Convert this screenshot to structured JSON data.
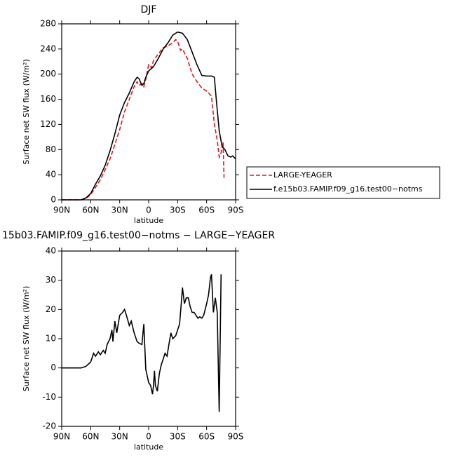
{
  "chart_data": [
    {
      "type": "line",
      "title": "DJF",
      "ylabel": "Surface net SW flux (W/m²)",
      "xlabel": "latitude",
      "xlim": [
        90,
        -90
      ],
      "xticks": [
        {
          "value": 90,
          "label": "90N"
        },
        {
          "value": 60,
          "label": "60N"
        },
        {
          "value": 30,
          "label": "30N"
        },
        0,
        {
          "value": -30,
          "label": "30S"
        },
        {
          "value": -60,
          "label": "60S"
        },
        {
          "value": -90,
          "label": "90S"
        }
      ],
      "ylim": [
        0,
        280
      ],
      "yticks": [
        0,
        40,
        80,
        120,
        160,
        200,
        240,
        280
      ],
      "series": [
        {
          "name": "LARGE-YEAGER",
          "color": "#e8141a",
          "style": "dashed",
          "x": [
            90,
            80,
            70,
            65,
            60,
            55,
            50,
            45,
            40,
            35,
            30,
            25,
            20,
            15,
            12,
            10,
            7,
            5,
            3,
            0,
            -3,
            -5,
            -10,
            -15,
            -20,
            -25,
            -28,
            -30,
            -33,
            -35,
            -40,
            -45,
            -50,
            -55,
            -60,
            -65,
            -68,
            -71,
            -73,
            -75,
            -77,
            -78
          ],
          "values": [
            0,
            0,
            0,
            2,
            8,
            20,
            32,
            48,
            65,
            88,
            112,
            140,
            160,
            180,
            188,
            182,
            185,
            180,
            192,
            215,
            210,
            222,
            232,
            242,
            245,
            250,
            255,
            252,
            238,
            240,
            225,
            200,
            188,
            178,
            173,
            165,
            120,
            95,
            68,
            75,
            92,
            35
          ]
        },
        {
          "name": "f.e15b03.FAMIP.f09_g16.test00−notms",
          "color": "#000000",
          "style": "solid",
          "x": [
            90,
            80,
            70,
            65,
            60,
            55,
            50,
            45,
            40,
            35,
            30,
            25,
            20,
            15,
            12,
            10,
            7,
            5,
            3,
            0,
            -5,
            -10,
            -15,
            -20,
            -25,
            -30,
            -35,
            -40,
            -45,
            -50,
            -55,
            -60,
            -65,
            -68,
            -70,
            -73,
            -76,
            -79,
            -82,
            -85,
            -87,
            -90
          ],
          "values": [
            0,
            0,
            0,
            3,
            10,
            25,
            38,
            55,
            78,
            105,
            135,
            155,
            170,
            188,
            195,
            193,
            182,
            185,
            195,
            205,
            212,
            225,
            240,
            250,
            262,
            267,
            265,
            255,
            235,
            215,
            198,
            197,
            197,
            195,
            160,
            110,
            85,
            80,
            70,
            68,
            70,
            65
          ]
        }
      ]
    },
    {
      "type": "line",
      "title": "15b03.FAMIP.f09_g16.test00−notms − LARGE−YEAGER",
      "ylabel": "Surface net SW flux (W/m²)",
      "xlabel": "latitude",
      "xlim": [
        90,
        -90
      ],
      "xticks": [
        {
          "value": 90,
          "label": "90N"
        },
        {
          "value": 60,
          "label": "60N"
        },
        {
          "value": 30,
          "label": "30N"
        },
        0,
        {
          "value": -30,
          "label": "30S"
        },
        {
          "value": -60,
          "label": "60S"
        },
        {
          "value": -90,
          "label": "90S"
        }
      ],
      "ylim": [
        -20,
        40
      ],
      "yticks": [
        -20,
        -10,
        0,
        10,
        20,
        30,
        40
      ],
      "series": [
        {
          "color": "#000000",
          "style": "solid",
          "x": [
            90,
            80,
            70,
            65,
            60,
            57,
            55,
            52,
            50,
            47,
            45,
            43,
            40,
            38,
            37,
            35,
            33,
            30,
            27,
            25,
            23,
            20,
            18,
            15,
            12,
            10,
            7,
            5,
            3,
            0,
            -2,
            -4,
            -5,
            -6,
            -7,
            -9,
            -11,
            -13,
            -15,
            -17,
            -19,
            -21,
            -23,
            -25,
            -28,
            -30,
            -32,
            -34,
            -35,
            -37,
            -39,
            -41,
            -43,
            -45,
            -47,
            -49,
            -51,
            -53,
            -55,
            -57,
            -60,
            -62,
            -64,
            -65,
            -67,
            -69,
            -71,
            -73,
            -75
          ],
          "values": [
            0,
            0,
            0,
            0.5,
            2,
            5,
            4,
            5.5,
            4.5,
            6,
            5,
            8,
            10,
            13,
            9,
            16,
            12,
            18,
            19,
            20,
            18,
            14.5,
            16,
            12,
            9,
            8.5,
            8,
            15,
            -0.5,
            -5,
            -6,
            -9,
            -6,
            -1,
            -6,
            -8,
            -2,
            1,
            3,
            5,
            4,
            8,
            12,
            10,
            11,
            13,
            15,
            23,
            27.5,
            22,
            24,
            24,
            21,
            19,
            19,
            18,
            17,
            17.5,
            17,
            18,
            22,
            25,
            31,
            32,
            19,
            24,
            19,
            -15,
            32
          ]
        }
      ]
    }
  ]
}
